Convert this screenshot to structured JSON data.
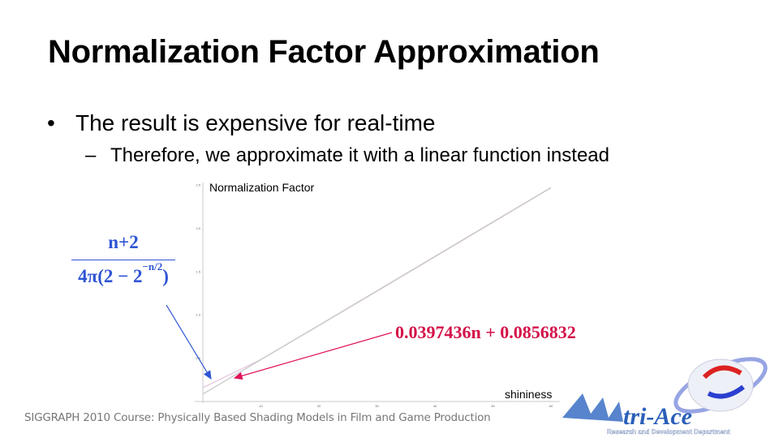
{
  "slide": {
    "title": "Normalization Factor Approximation",
    "bullet_1": "The result is expensive for real-time",
    "bullet_1_marker": "•",
    "bullet_2": "Therefore, we approximate it with a linear function instead",
    "bullet_2_marker": "–",
    "exact_formula": {
      "numerator": "n+2",
      "denominator_prefix": "4π(2 − 2",
      "denominator_exponent": "−n/2",
      "denominator_suffix": ")",
      "color": "#2f55d4"
    },
    "approx_formula": {
      "text": "0.0397436n + 0.0856832",
      "color": "#d41249"
    },
    "footer": "SIGGRAPH 2010 Course: Physically Based Shading Models in Film and Game Production",
    "logo": {
      "name": "tri-Ace",
      "subtitle": "Research and Development Department"
    }
  },
  "chart_data": {
    "type": "line",
    "ylabel": "Normalization Factor",
    "xlabel": "shininess",
    "xlim": [
      0,
      60
    ],
    "ylim": [
      0,
      2.5
    ],
    "x_ticks": [
      "10",
      "20",
      "30",
      "40",
      "50",
      "60"
    ],
    "y_ticks": [
      "0.5",
      "1.0",
      "1.5",
      "2.0",
      "2.5"
    ],
    "grid": false,
    "x": [
      0,
      10,
      20,
      30,
      40,
      50,
      60
    ],
    "series": [
      {
        "values": [
          0.159,
          0.485,
          0.876,
          1.273,
          1.671,
          2.069,
          2.467
        ],
        "color": "#e4c6e0"
      },
      {
        "values": [
          0.0857,
          0.483,
          0.88,
          1.278,
          1.675,
          2.073,
          2.47
        ],
        "color": "#c8c8c8"
      }
    ]
  }
}
